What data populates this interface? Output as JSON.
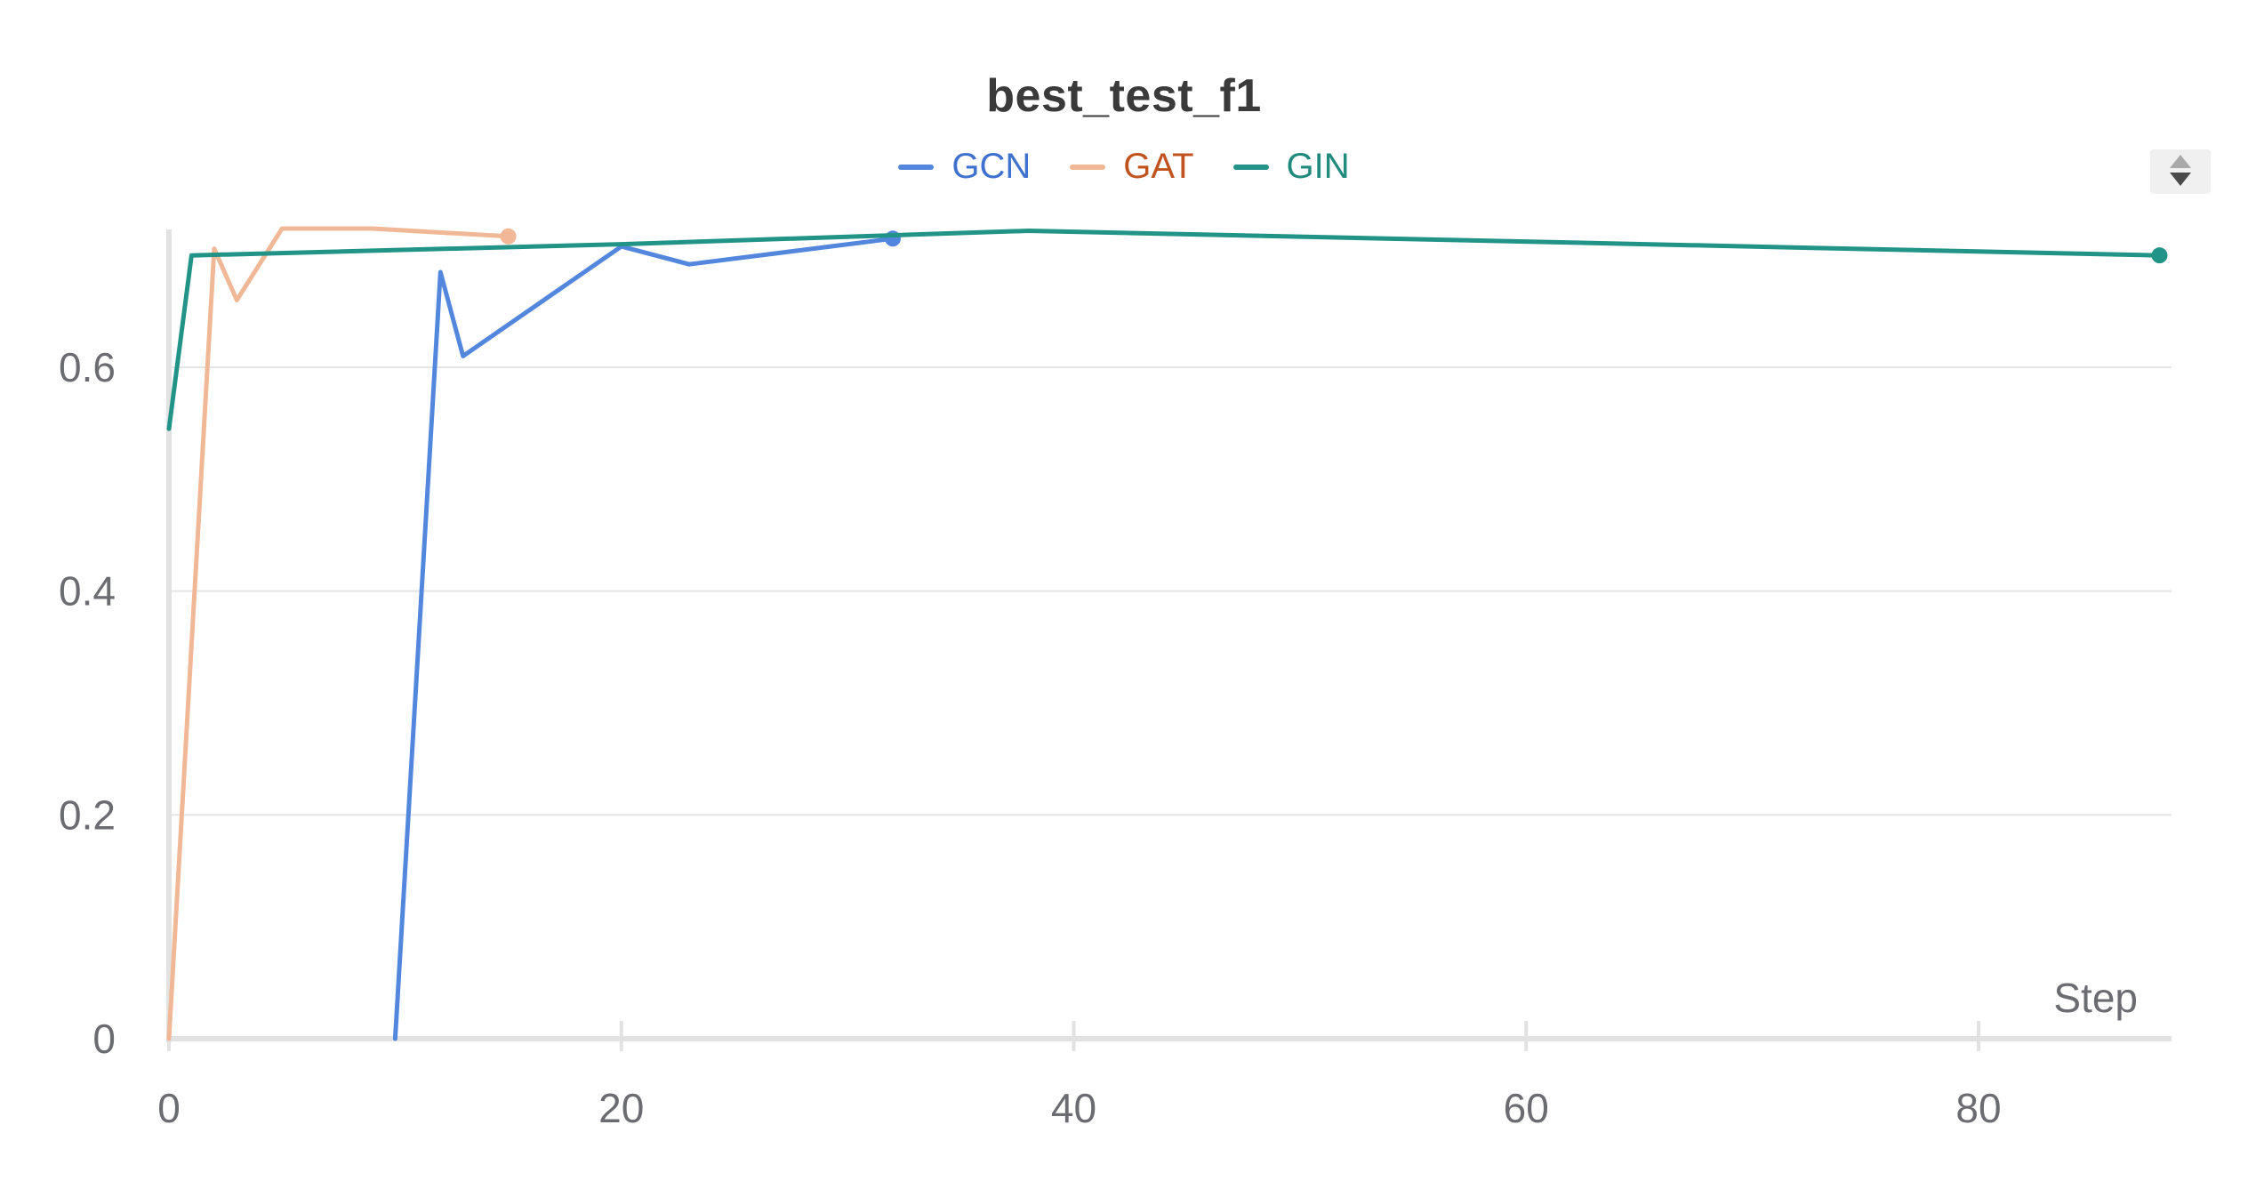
{
  "chart_data": {
    "type": "line",
    "title": "best_test_f1",
    "xlabel": "Step",
    "ylabel": "",
    "xlim": [
      0,
      88
    ],
    "ylim": [
      0,
      0.72
    ],
    "x_ticks": [
      0,
      20,
      40,
      60,
      80
    ],
    "y_ticks": [
      0,
      0.2,
      0.4,
      0.6
    ],
    "x_tick_labels": [
      "0",
      "20",
      "40",
      "60",
      "80"
    ],
    "y_tick_labels": [
      "0",
      "0.2",
      "0.4",
      "0.6"
    ],
    "grid": true,
    "legend_position": "top-center",
    "series": [
      {
        "name": "GCN",
        "color": "#5387dd",
        "text_color": "#3f72cf",
        "x": [
          10,
          12,
          13,
          20,
          23,
          32
        ],
        "y": [
          0,
          0.685,
          0.61,
          0.708,
          0.692,
          0.715
        ]
      },
      {
        "name": "GAT",
        "color": "#f0b896",
        "text_color": "#c0521e",
        "x": [
          0,
          2,
          3,
          5,
          9,
          15
        ],
        "y": [
          0,
          0.706,
          0.66,
          0.724,
          0.724,
          0.717
        ]
      },
      {
        "name": "GIN",
        "color": "#229487",
        "text_color": "#1f8a7d",
        "x": [
          0,
          1,
          20,
          38,
          88
        ],
        "y": [
          0.545,
          0.7,
          0.71,
          0.722,
          0.7
        ]
      }
    ]
  }
}
